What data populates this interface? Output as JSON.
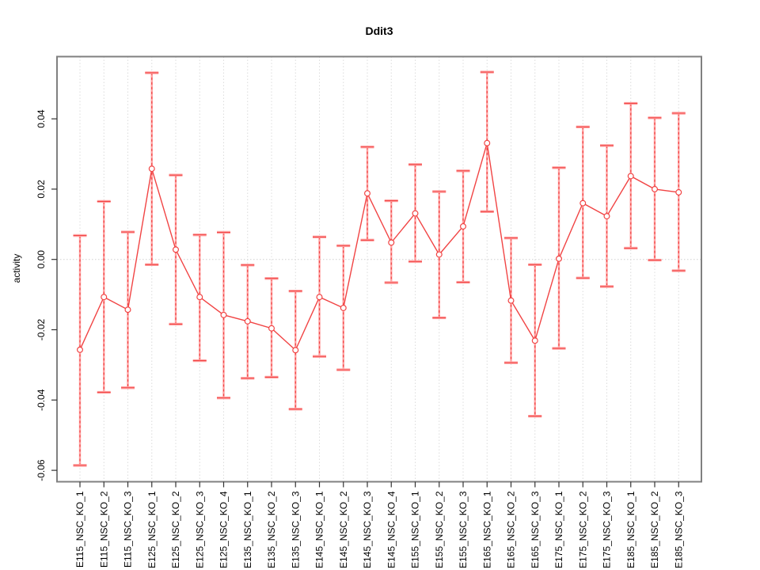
{
  "title": "Ddit3",
  "chart_data": {
    "type": "line",
    "title": "Ddit3",
    "xlabel": "",
    "ylabel": "activity",
    "legend": "none",
    "grid": "vertical dotted gridlines at each category; horizontal dotted line at y=0 only",
    "marker": "open-circle",
    "error_bars": true,
    "categories": [
      "E115_NSC_KO_1",
      "E115_NSC_KO_2",
      "E115_NSC_KO_3",
      "E125_NSC_KO_1",
      "E125_NSC_KO_2",
      "E125_NSC_KO_3",
      "E125_NSC_KO_4",
      "E135_NSC_KO_1",
      "E135_NSC_KO_2",
      "E135_NSC_KO_3",
      "E145_NSC_KO_1",
      "E145_NSC_KO_2",
      "E145_NSC_KO_3",
      "E145_NSC_KO_4",
      "E155_NSC_KO_1",
      "E155_NSC_KO_2",
      "E155_NSC_KO_3",
      "E165_NSC_KO_1",
      "E165_NSC_KO_2",
      "E165_NSC_KO_3",
      "E175_NSC_KO_1",
      "E175_NSC_KO_2",
      "E175_NSC_KO_3",
      "E185_NSC_KO_1",
      "E185_NSC_KO_2",
      "E185_NSC_KO_3"
    ],
    "series": [
      {
        "name": "activity",
        "values": [
          -0.0257,
          -0.0107,
          -0.0143,
          0.0258,
          0.0028,
          -0.0107,
          -0.0158,
          -0.0176,
          -0.0196,
          -0.0258,
          -0.0107,
          -0.0138,
          0.0188,
          0.0048,
          0.0131,
          0.0014,
          0.0094,
          0.0331,
          -0.0117,
          -0.0231,
          0.0002,
          0.016,
          0.0123,
          0.0237,
          0.02,
          0.0191
        ],
        "ci_low": [
          -0.0586,
          -0.0378,
          -0.0365,
          -0.0015,
          -0.0184,
          -0.0288,
          -0.0394,
          -0.0338,
          -0.0335,
          -0.0426,
          -0.0276,
          -0.0314,
          0.0055,
          -0.0066,
          -0.0006,
          -0.0166,
          -0.0065,
          0.0136,
          -0.0294,
          -0.0446,
          -0.0253,
          -0.0053,
          -0.0077,
          0.0032,
          -0.0002,
          -0.0032
        ],
        "ci_high": [
          0.0068,
          0.0165,
          0.0078,
          0.0531,
          0.024,
          0.007,
          0.0077,
          -0.0016,
          -0.0054,
          -0.009,
          0.0064,
          0.0039,
          0.032,
          0.0167,
          0.027,
          0.0193,
          0.0252,
          0.0533,
          0.0061,
          -0.0015,
          0.0261,
          0.0377,
          0.0324,
          0.0444,
          0.0403,
          0.0416
        ]
      }
    ],
    "ytick_labels": [
      "0.04",
      "0.02",
      "0.00",
      "-0.02",
      "-0.04",
      "-0.06"
    ],
    "ytick_values": [
      0.04,
      0.02,
      0.0,
      -0.02,
      -0.04,
      -0.06
    ],
    "ylim": [
      -0.0632,
      0.0577
    ],
    "colors": {
      "line": "#f14444",
      "marker_stroke": "#f14444",
      "marker_fill": "#ffffff",
      "error_bar_light": "#ffa3a3",
      "error_bar_dash": "#f14444",
      "gridline": "#dcdcdc",
      "zero_line": "#d0d0d0",
      "frame": "#808080",
      "tick": "#333333",
      "text": "#000000"
    }
  }
}
